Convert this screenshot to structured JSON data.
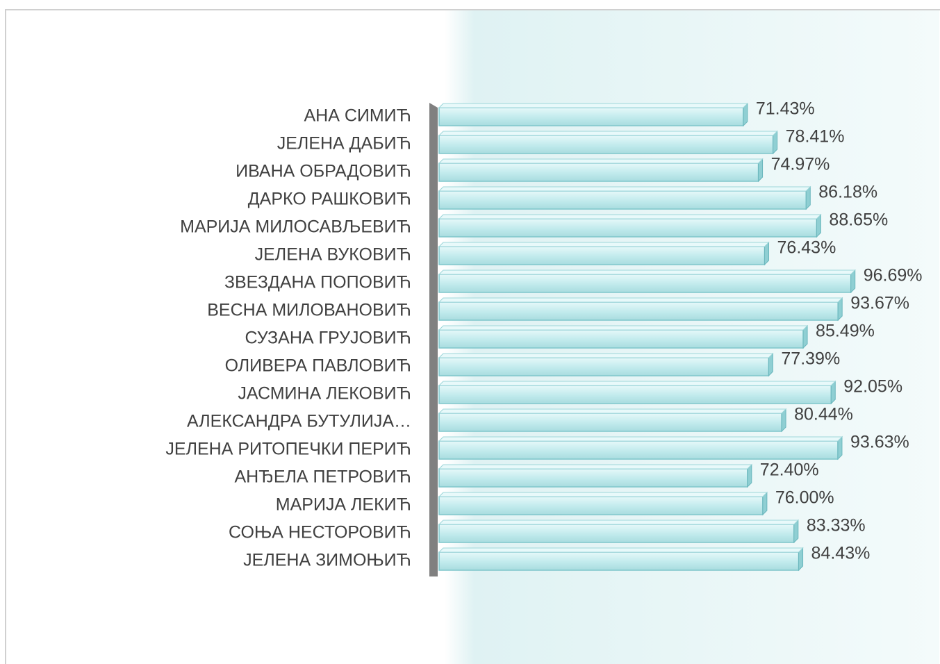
{
  "chart_data": {
    "type": "bar",
    "orientation": "horizontal",
    "categories": [
      "АНА СИМИЋ",
      "ЈЕЛЕНА ДАБИЋ",
      "ИВАНА ОБРАДОВИЋ",
      "ДАРКО РАШКОВИЋ",
      "МАРИЈА МИЛОСАВЉЕВИЋ",
      "ЈЕЛЕНА ВУКОВИЋ",
      "ЗВЕЗДАНА ПОПОВИЋ",
      "ВЕСНА МИЛОВАНОВИЋ",
      "СУЗАНА ГРУЈОВИЋ",
      "ОЛИВЕРА ПАВЛОВИЋ",
      "ЈАСМИНА ЛЕКОВИЋ",
      "АЛЕКСАНДРА БУТУЛИЈА…",
      "ЈЕЛЕНА РИТОПЕЧКИ ПЕРИЋ",
      "АНЂЕЛА ПЕТРОВИЋ",
      "МАРИЈА ЛЕКИЋ",
      "СОЊА НЕСТОРОВИЋ",
      "ЈЕЛЕНА ЗИМОЊИЋ"
    ],
    "values": [
      71.43,
      78.41,
      74.97,
      86.18,
      88.65,
      76.43,
      96.69,
      93.67,
      85.49,
      77.39,
      92.05,
      80.44,
      93.63,
      72.4,
      76.0,
      83.33,
      84.43
    ],
    "value_labels": [
      "71.43%",
      "78.41%",
      "74.97%",
      "86.18%",
      "88.65%",
      "76.43%",
      "96.69%",
      "93.67%",
      "85.49%",
      "77.39%",
      "92.05%",
      "80.44%",
      "93.63%",
      "72.40%",
      "76.00%",
      "83.33%",
      "84.43%"
    ],
    "color": "#c8eef0",
    "xlim": [
      0,
      100
    ]
  }
}
